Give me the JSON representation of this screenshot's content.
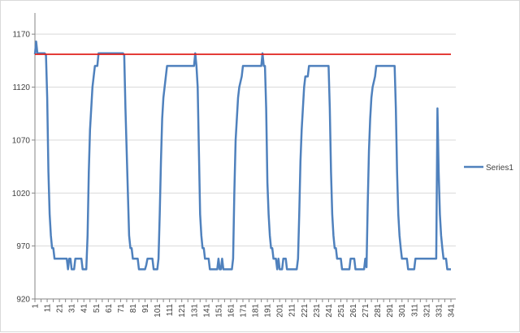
{
  "chart_data": {
    "type": "line",
    "title": "",
    "xlabel": "",
    "ylabel": "",
    "ylim": [
      920,
      1190
    ],
    "yticks": [
      920,
      970,
      1020,
      1070,
      1120,
      1170
    ],
    "xlim": [
      1,
      345
    ],
    "xticks": [
      1,
      11,
      21,
      31,
      41,
      51,
      61,
      71,
      81,
      91,
      101,
      111,
      121,
      131,
      141,
      151,
      161,
      171,
      181,
      191,
      201,
      211,
      221,
      231,
      241,
      251,
      261,
      271,
      281,
      291,
      301,
      311,
      321,
      331,
      341
    ],
    "grid": "horizontal",
    "legend": "right",
    "series": [
      {
        "name": "Series1",
        "color": "#4f81bd",
        "points": [
          [
            1,
            1151
          ],
          [
            2,
            1163
          ],
          [
            3,
            1152
          ],
          [
            9,
            1152
          ],
          [
            10,
            1150
          ],
          [
            11,
            1110
          ],
          [
            12,
            1040
          ],
          [
            13,
            1000
          ],
          [
            14,
            980
          ],
          [
            15,
            968
          ],
          [
            16,
            968
          ],
          [
            17,
            958
          ],
          [
            27,
            958
          ],
          [
            28,
            948
          ],
          [
            29,
            958
          ],
          [
            30,
            958
          ],
          [
            31,
            948
          ],
          [
            33,
            948
          ],
          [
            34,
            958
          ],
          [
            39,
            958
          ],
          [
            40,
            948
          ],
          [
            43,
            948
          ],
          [
            44,
            980
          ],
          [
            45,
            1040
          ],
          [
            46,
            1080
          ],
          [
            47,
            1100
          ],
          [
            48,
            1120
          ],
          [
            49,
            1130
          ],
          [
            50,
            1140
          ],
          [
            52,
            1140
          ],
          [
            53,
            1152
          ],
          [
            73,
            1152
          ],
          [
            74,
            1150
          ],
          [
            75,
            1100
          ],
          [
            76,
            1060
          ],
          [
            77,
            1020
          ],
          [
            78,
            980
          ],
          [
            79,
            968
          ],
          [
            80,
            968
          ],
          [
            81,
            958
          ],
          [
            85,
            958
          ],
          [
            86,
            948
          ],
          [
            91,
            948
          ],
          [
            92,
            952
          ],
          [
            93,
            958
          ],
          [
            97,
            958
          ],
          [
            98,
            948
          ],
          [
            101,
            948
          ],
          [
            102,
            958
          ],
          [
            103,
            1000
          ],
          [
            104,
            1050
          ],
          [
            105,
            1090
          ],
          [
            106,
            1110
          ],
          [
            107,
            1120
          ],
          [
            108,
            1130
          ],
          [
            109,
            1140
          ],
          [
            131,
            1140
          ],
          [
            132,
            1152
          ],
          [
            133,
            1140
          ],
          [
            134,
            1120
          ],
          [
            135,
            1060
          ],
          [
            136,
            1000
          ],
          [
            137,
            980
          ],
          [
            138,
            968
          ],
          [
            139,
            968
          ],
          [
            140,
            958
          ],
          [
            143,
            958
          ],
          [
            144,
            948
          ],
          [
            150,
            948
          ],
          [
            151,
            958
          ],
          [
            152,
            948
          ],
          [
            153,
            948
          ],
          [
            154,
            958
          ],
          [
            155,
            948
          ],
          [
            162,
            948
          ],
          [
            163,
            958
          ],
          [
            164,
            1020
          ],
          [
            165,
            1070
          ],
          [
            166,
            1090
          ],
          [
            167,
            1110
          ],
          [
            168,
            1120
          ],
          [
            170,
            1130
          ],
          [
            171,
            1140
          ],
          [
            186,
            1140
          ],
          [
            187,
            1152
          ],
          [
            188,
            1140
          ],
          [
            189,
            1140
          ],
          [
            190,
            1100
          ],
          [
            191,
            1030
          ],
          [
            192,
            1000
          ],
          [
            193,
            980
          ],
          [
            194,
            968
          ],
          [
            195,
            968
          ],
          [
            196,
            958
          ],
          [
            198,
            958
          ],
          [
            199,
            948
          ],
          [
            200,
            958
          ],
          [
            201,
            948
          ],
          [
            203,
            948
          ],
          [
            204,
            958
          ],
          [
            206,
            958
          ],
          [
            207,
            948
          ],
          [
            215,
            948
          ],
          [
            216,
            958
          ],
          [
            217,
            1000
          ],
          [
            218,
            1050
          ],
          [
            219,
            1080
          ],
          [
            220,
            1100
          ],
          [
            221,
            1120
          ],
          [
            222,
            1130
          ],
          [
            224,
            1130
          ],
          [
            225,
            1140
          ],
          [
            240,
            1140
          ],
          [
            241,
            1140
          ],
          [
            242,
            1100
          ],
          [
            243,
            1040
          ],
          [
            244,
            1000
          ],
          [
            245,
            980
          ],
          [
            246,
            968
          ],
          [
            247,
            968
          ],
          [
            248,
            958
          ],
          [
            251,
            958
          ],
          [
            252,
            948
          ],
          [
            258,
            948
          ],
          [
            259,
            958
          ],
          [
            262,
            958
          ],
          [
            263,
            948
          ],
          [
            270,
            948
          ],
          [
            271,
            958
          ],
          [
            272,
            950
          ],
          [
            273,
            1010
          ],
          [
            274,
            1060
          ],
          [
            275,
            1090
          ],
          [
            276,
            1110
          ],
          [
            277,
            1120
          ],
          [
            279,
            1130
          ],
          [
            280,
            1140
          ],
          [
            295,
            1140
          ],
          [
            296,
            1100
          ],
          [
            297,
            1040
          ],
          [
            298,
            1000
          ],
          [
            299,
            980
          ],
          [
            300,
            968
          ],
          [
            301,
            958
          ],
          [
            305,
            958
          ],
          [
            306,
            948
          ],
          [
            311,
            948
          ],
          [
            312,
            958
          ],
          [
            313,
            958
          ]
        ]
      },
      {
        "name": "",
        "color": "#e0201b",
        "points": [
          [
            1,
            1151
          ],
          [
            341,
            1151
          ]
        ]
      }
    ]
  }
}
